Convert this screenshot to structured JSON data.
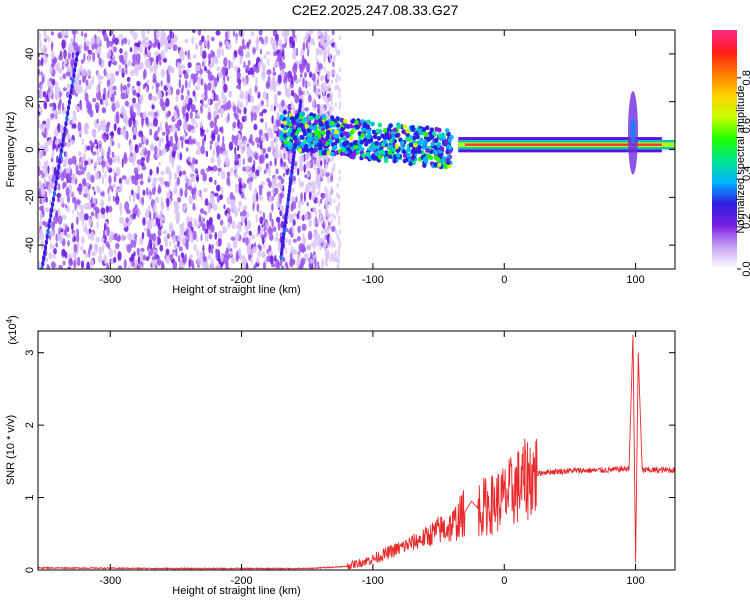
{
  "title": "C2E2.2025.247.08.33.G27",
  "chart_data": [
    {
      "type": "heatmap",
      "xlabel": "Height of straight line (km)",
      "ylabel": "Frequency (Hz)",
      "xlim": [
        -355,
        130
      ],
      "ylim": [
        -50,
        50
      ],
      "x_ticks": [
        -300,
        -200,
        -100,
        0,
        100
      ],
      "y_ticks": [
        -40,
        -20,
        0,
        20,
        40
      ],
      "colorbar": {
        "label": "Normalized spectral amplitude",
        "range": [
          0,
          1
        ],
        "ticks": [
          "0.0",
          "0.2",
          "0.4",
          "0.6",
          "0.8"
        ],
        "colors": [
          "#ffffff",
          "#c9a6f5",
          "#7a1fe0",
          "#2c1ee0",
          "#00b4ff",
          "#00e68a",
          "#22ff00",
          "#c8ff00",
          "#ffd200",
          "#ff7a00",
          "#ff1a1a",
          "#ff2a8a"
        ]
      },
      "features": [
        {
          "name": "noise",
          "x_range": [
            -355,
            -130
          ],
          "level": 0.18
        },
        {
          "name": "scatter band",
          "x_range": [
            -170,
            -40
          ],
          "y_center": 8,
          "level": 0.4
        },
        {
          "name": "carrier line",
          "x_range": [
            -35,
            120
          ],
          "y": 2,
          "level": 0.9
        },
        {
          "name": "burst",
          "x": 98,
          "y_range": [
            -10,
            25
          ],
          "level": 0.5
        }
      ]
    },
    {
      "type": "line",
      "xlabel": "Height of straight line (km)",
      "ylabel": "SNR (10 * v/v)",
      "y_multiplier": "(x10",
      "y_multiplier_exp": "4",
      "y_multiplier_close": ")",
      "xlim": [
        -355,
        130
      ],
      "ylim": [
        0,
        3.3
      ],
      "x_ticks": [
        -300,
        -200,
        -100,
        0,
        100
      ],
      "y_ticks": [
        0,
        1,
        2,
        3
      ],
      "color": "#e8282a",
      "series": [
        {
          "x": [
            -355,
            -250,
            -150,
            -120,
            -100,
            -80,
            -60,
            -50,
            -40,
            -30,
            -25,
            -20,
            -10,
            0,
            10,
            20,
            30,
            50,
            80,
            95,
            98,
            100,
            102,
            105,
            130
          ],
          "y": [
            0.03,
            0.02,
            0.02,
            0.05,
            0.15,
            0.3,
            0.45,
            0.55,
            0.6,
            0.8,
            0.95,
            0.85,
            0.9,
            1.0,
            1.15,
            1.3,
            1.35,
            1.37,
            1.38,
            1.4,
            3.25,
            0.1,
            3.0,
            1.38,
            1.38
          ]
        }
      ]
    }
  ]
}
